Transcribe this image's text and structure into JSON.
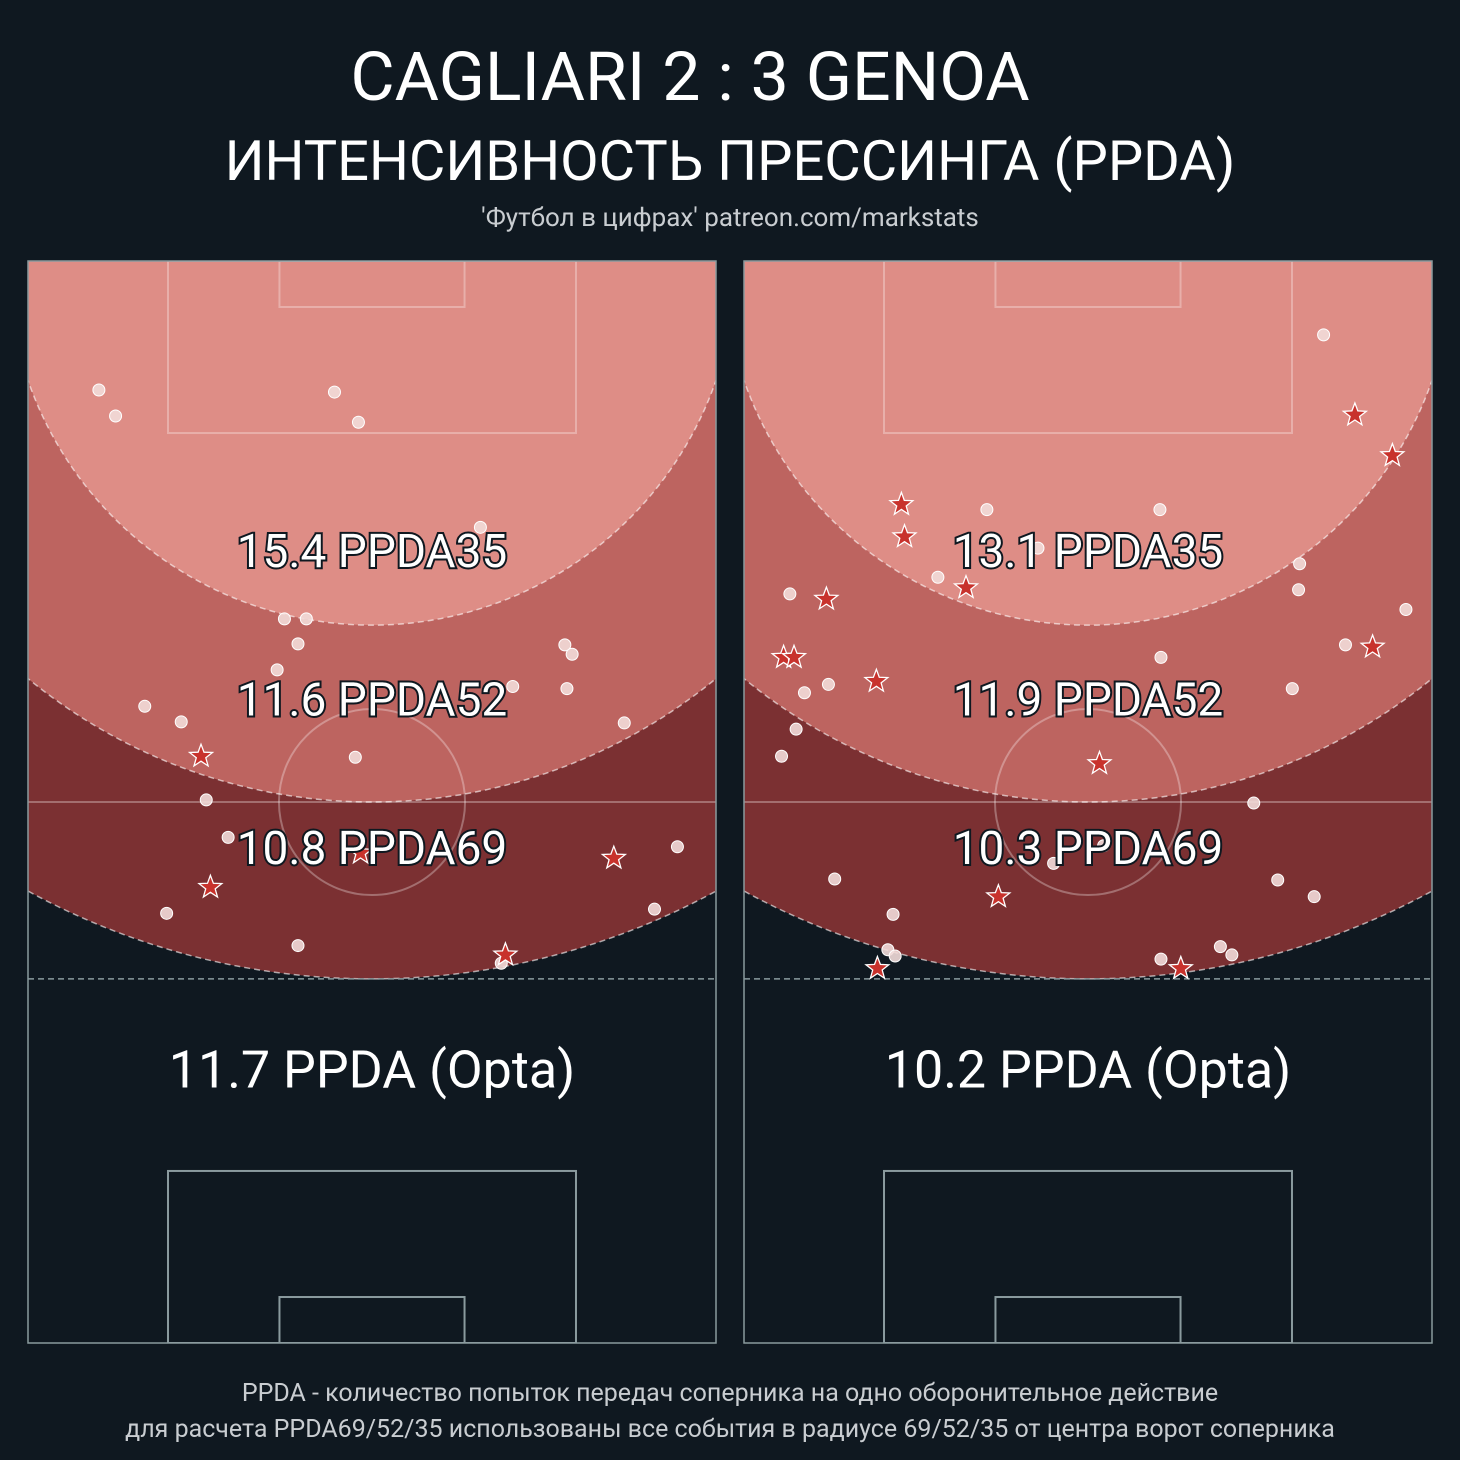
{
  "title": "CAGLIARI  2 : 3  GENOA",
  "subtitle": "ИНТЕНСИВНОСТЬ ПРЕССИНГА (PPDA)",
  "source": "'Футбол в цифрах' patreon.com/markstats",
  "notes": [
    "PPDA - количество попыток передач соперника на одно оборонительное действие",
    "для расчета PPDA69/52/35 использованы все события в радиусе 69/52/35 от центра ворот соперника"
  ],
  "chart_data": [
    {
      "type": "pitch",
      "xlim": [
        0,
        66
      ],
      "ylim": [
        0,
        104
      ],
      "zones": {
        "radius": [
          35,
          52,
          69
        ],
        "colors": [
          "#de8d86",
          "#bd6460",
          "#7b3032"
        ],
        "values": [
          15.4,
          11.6,
          10.8
        ],
        "value_labels": [
          "15.4 PPDA35",
          "11.6 PPDA52",
          "10.8 PPDA69"
        ]
      },
      "opta": {
        "value": 11.7,
        "label": "11.7 PPDA (Opta)"
      },
      "series": [
        {
          "marker": "circle",
          "color": "#f2dcd9",
          "x": [
            6.8,
            8.4,
            29.4,
            31.7,
            43.4,
            24.6,
            26.7,
            25.9,
            23.9,
            51.5,
            52.2,
            46.5,
            51.7,
            11.2,
            14.7,
            57.2,
            31.4,
            17.1,
            19.2,
            62.3,
            13.3,
            60.1,
            25.9,
            45.4
          ],
          "y": [
            12.4,
            14.9,
            12.6,
            15.5,
            25.6,
            34.4,
            34.4,
            36.8,
            39.3,
            36.9,
            37.8,
            40.9,
            41.1,
            42.8,
            44.3,
            44.4,
            47.7,
            51.8,
            55.4,
            56.3,
            62.7,
            62.3,
            65.8,
            67.5
          ]
        },
        {
          "marker": "star",
          "color": "#c8322c",
          "x": [
            16.6,
            31.9,
            56.2,
            17.5,
            45.8
          ],
          "y": [
            47.6,
            56.9,
            57.4,
            60.2,
            66.7
          ]
        }
      ]
    },
    {
      "type": "pitch",
      "xlim": [
        0,
        66
      ],
      "ylim": [
        0,
        104
      ],
      "zones": {
        "radius": [
          35,
          52,
          69
        ],
        "colors": [
          "#de8d86",
          "#bd6460",
          "#7b3032"
        ],
        "values": [
          13.1,
          11.9,
          10.3
        ],
        "value_labels": [
          "13.1 PPDA35",
          "11.9 PPDA52",
          "10.3 PPDA69"
        ]
      },
      "opta": {
        "value": 10.2,
        "label": "10.2 PPDA (Opta)"
      },
      "series": [
        {
          "marker": "circle",
          "color": "#f2dcd9",
          "x": [
            55.6,
            23.3,
            39.9,
            28.2,
            18.6,
            53.3,
            53.2,
            4.4,
            63.5,
            40.0,
            57.7,
            8.1,
            5.8,
            52.6,
            5.0,
            3.6,
            48.9,
            34.5,
            29.7,
            8.7,
            51.2,
            54.7,
            14.3,
            13.8,
            14.5,
            40.0,
            45.7,
            46.8
          ],
          "y": [
            7.1,
            23.9,
            23.9,
            27.6,
            30.4,
            29.1,
            31.6,
            32.0,
            33.5,
            38.1,
            36.9,
            40.7,
            41.5,
            41.1,
            45.0,
            47.6,
            52.1,
            56.2,
            57.9,
            59.4,
            59.5,
            61.1,
            62.8,
            66.2,
            66.8,
            67.1,
            65.9,
            66.7
          ]
        },
        {
          "marker": "star",
          "color": "#c8322c",
          "x": [
            58.6,
            62.2,
            15.1,
            15.4,
            7.9,
            21.3,
            3.8,
            4.8,
            12.7,
            60.3,
            34.1,
            24.4,
            12.8,
            41.9
          ],
          "y": [
            14.8,
            18.7,
            23.4,
            26.5,
            32.5,
            31.4,
            38.1,
            38.1,
            40.4,
            37.1,
            48.3,
            61.1,
            68.0,
            68.0
          ]
        }
      ]
    }
  ]
}
